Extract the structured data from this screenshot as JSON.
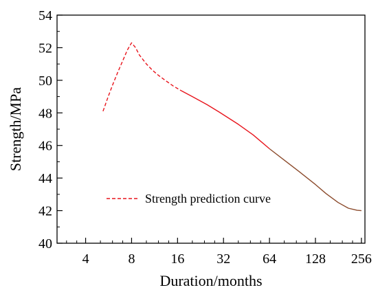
{
  "chart_data": {
    "type": "line",
    "title": "",
    "xlabel": "Duration/months",
    "ylabel": "Strength/MPa",
    "x_scale": "log2",
    "xlim": [
      2.6,
      270
    ],
    "ylim": [
      40,
      54
    ],
    "x_ticks": [
      {
        "value": 4,
        "label": "4"
      },
      {
        "value": 8,
        "label": "8"
      },
      {
        "value": 16,
        "label": "16"
      },
      {
        "value": 32,
        "label": "32"
      },
      {
        "value": 64,
        "label": "64"
      },
      {
        "value": 128,
        "label": "128"
      },
      {
        "value": 256,
        "label": "256"
      }
    ],
    "y_ticks": [
      {
        "value": 40,
        "label": "40"
      },
      {
        "value": 42,
        "label": "42"
      },
      {
        "value": 44,
        "label": "44"
      },
      {
        "value": 46,
        "label": "46"
      },
      {
        "value": 48,
        "label": "48"
      },
      {
        "value": 50,
        "label": "50"
      },
      {
        "value": 52,
        "label": "52"
      },
      {
        "value": 54,
        "label": "54"
      }
    ],
    "legend": {
      "position": "center-left",
      "label": "Strength prediction curve"
    },
    "grid": false,
    "series": [
      {
        "name": "Strength prediction curve",
        "style": "dashed",
        "color": "#e8141c",
        "x": [
          5.2,
          5.6,
          6.0,
          6.5,
          7.0,
          7.5,
          8.0,
          8.5,
          9.0,
          10.0,
          11.0,
          12.0,
          13.5,
          15.0,
          17.0
        ],
        "y": [
          48.1,
          48.95,
          49.7,
          50.5,
          51.2,
          51.85,
          52.3,
          52.0,
          51.55,
          51.0,
          50.6,
          50.3,
          49.95,
          49.65,
          49.35
        ]
      },
      {
        "name": "",
        "style": "solid",
        "color": "#e8141c",
        "x": [
          17.0,
          20.0,
          25.0,
          30.0,
          40.0,
          50.0,
          64.0
        ],
        "y": [
          49.35,
          49.0,
          48.5,
          48.05,
          47.3,
          46.65,
          45.8
        ]
      },
      {
        "name": "",
        "style": "solid",
        "color": "#8b4a2b",
        "x": [
          64.0,
          80.0,
          100.0,
          128.0,
          150.0,
          180.0,
          210.0,
          240.0,
          256.0
        ],
        "y": [
          45.8,
          45.1,
          44.4,
          43.6,
          43.05,
          42.5,
          42.15,
          42.02,
          42.0
        ]
      }
    ]
  }
}
